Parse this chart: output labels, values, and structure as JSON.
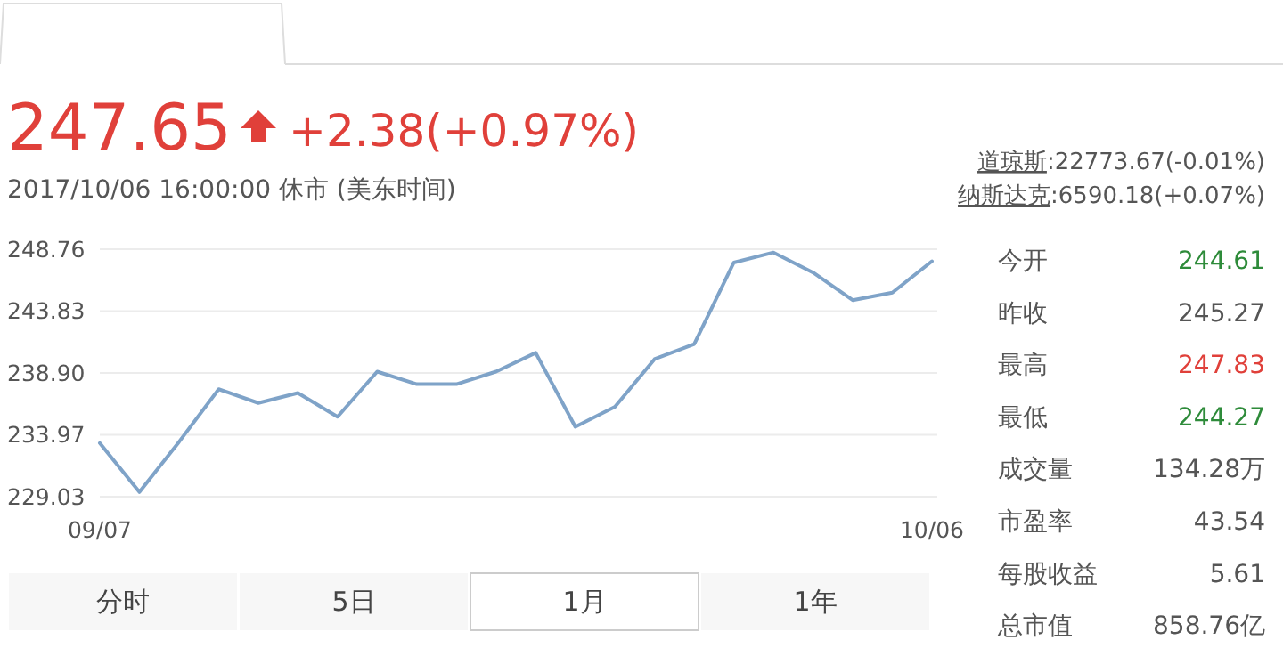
{
  "chart_data": {
    "type": "line",
    "title": "247.65",
    "subtitle": "+2.38(+0.97%)",
    "annotations": [
      "2017/10/06 16:00:00 休市 (美东时间)",
      "道琼斯:22773.67(-0.01%)",
      "纳斯达克:6590.18(+0.07%)",
      "今开",
      "244.61",
      "昨收",
      "245.27",
      "最高",
      "247.83",
      "最低",
      "244.27",
      "成交量",
      "134.28万",
      "市盈率",
      "43.54",
      "每股收益",
      "5.61",
      "总市值",
      "858.76亿",
      "分时",
      "5日",
      "1月",
      "1年"
    ],
    "categories": [
      "09/07",
      null,
      null,
      null,
      null,
      null,
      null,
      null,
      null,
      null,
      null,
      null,
      null,
      null,
      null,
      null,
      null,
      null,
      null,
      null,
      null,
      "10/06"
    ],
    "series": [
      {
        "color": "#7fa3c8",
        "values": [
          233.3,
          229.4,
          233.4,
          237.6,
          236.5,
          237.3,
          235.4,
          239.0,
          238.0,
          238.0,
          239.0,
          240.5,
          234.6,
          236.2,
          240.0,
          241.2,
          247.7,
          248.5,
          246.9,
          244.7,
          245.3,
          247.8
        ]
      }
    ],
    "ylim": [
      229.03,
      248.76
    ],
    "yticks": [
      229.03,
      233.97,
      {
        "value": 238.9,
        "label": "238.90"
      },
      243.83,
      248.76
    ],
    "grid": "y",
    "marker": "none",
    "line_style": "solid"
  }
}
